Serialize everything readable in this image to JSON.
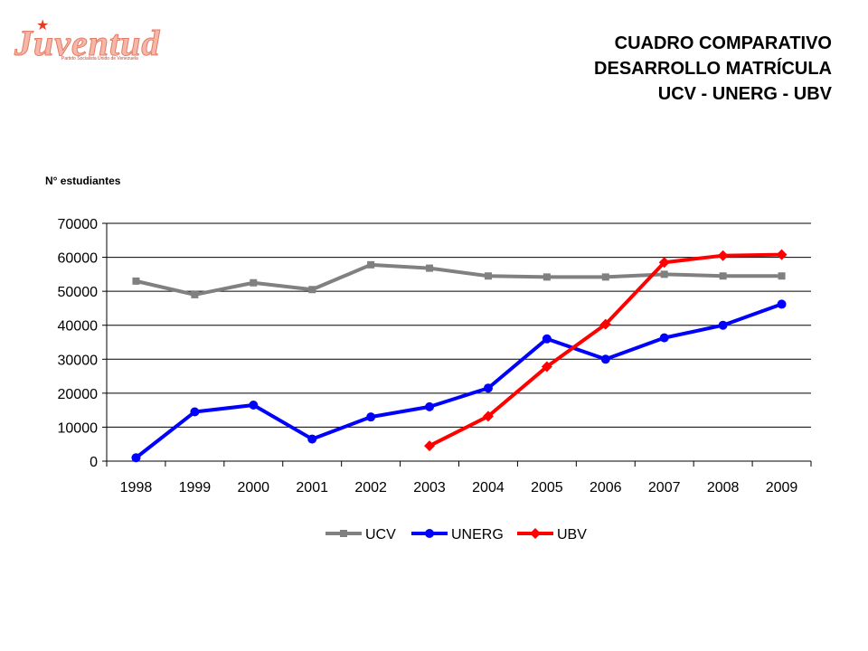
{
  "logo": {
    "text": "Juventud",
    "tagline": "Partido Socialista Unido de Venezuela",
    "star": "★"
  },
  "title": {
    "line1": "CUADRO COMPARATIVO",
    "line2": "DESARROLLO MATRÍCULA",
    "line3": "UCV - UNERG - UBV"
  },
  "chart_data": {
    "type": "line",
    "ylabel": "N° estudiantes",
    "xlabel": "",
    "categories": [
      "1998",
      "1999",
      "2000",
      "2001",
      "2002",
      "2003",
      "2004",
      "2005",
      "2006",
      "2007",
      "2008",
      "2009"
    ],
    "ylim": [
      0,
      70000
    ],
    "yticks": [
      0,
      10000,
      20000,
      30000,
      40000,
      50000,
      60000,
      70000
    ],
    "grid": true,
    "legend_position": "bottom",
    "series": [
      {
        "name": "UCV",
        "color": "#808080",
        "marker": "square",
        "values": [
          53000,
          49000,
          52500,
          50500,
          57800,
          56800,
          54500,
          54200,
          54200,
          55000,
          54500,
          54500
        ]
      },
      {
        "name": "UNERG",
        "color": "#0000ff",
        "marker": "circle",
        "values": [
          1000,
          14500,
          16500,
          6500,
          13000,
          16000,
          21500,
          36000,
          30000,
          36300,
          40000,
          46200
        ]
      },
      {
        "name": "UBV",
        "color": "#ff0000",
        "marker": "diamond",
        "values": [
          null,
          null,
          null,
          null,
          null,
          4500,
          13200,
          27800,
          40300,
          58500,
          60500,
          60800
        ]
      }
    ]
  }
}
